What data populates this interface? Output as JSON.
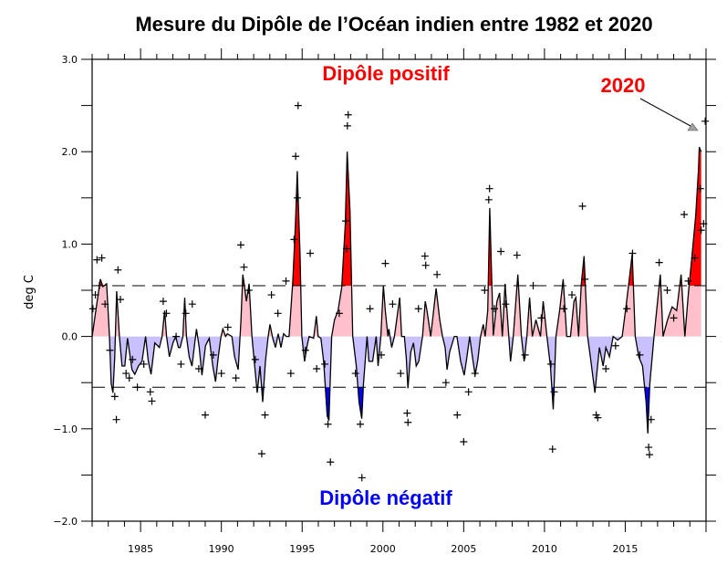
{
  "chart_data": {
    "type": "area",
    "title": "Mesure du Dipôle de l’Océan indien entre 1982 et 2020",
    "xlabel": "",
    "ylabel": "deg C",
    "xlim": [
      1982,
      2020
    ],
    "ylim": [
      -2.0,
      3.0
    ],
    "xticks": [
      1985,
      1990,
      1995,
      2000,
      2005,
      2010,
      2015
    ],
    "xtick_labels": [
      "1985",
      "1990",
      "1995",
      "2000",
      "2005",
      "2010",
      "2015"
    ],
    "yticks": [
      3.0,
      2.0,
      1.0,
      0.0,
      -1.0,
      -2.0
    ],
    "ytick_labels": [
      "3.0",
      "2.0",
      "1.0",
      "0.0",
      "−1.0",
      "−2.0"
    ],
    "grid": false,
    "thresholds": [
      0.55,
      -0.55
    ],
    "colors": {
      "positive_strong": "#ff0000",
      "positive_weak": "#ffc0cb",
      "negative_weak": "#c8c0ff",
      "negative_strong": "#0000ff",
      "line": "#000000",
      "arrow_head": "#a0a0a0"
    },
    "annotations": {
      "positive": {
        "text": "Dipôle positif",
        "color": "#ff0000"
      },
      "negative": {
        "text": "Dipôle négatif",
        "color": "#0000ff"
      },
      "highlight": {
        "text": "2020",
        "color": "#ff0000",
        "points_to": [
          2019.6,
          2.3
        ]
      }
    },
    "series": [
      {
        "kind": "smoothed-line",
        "x": [
          1982.0,
          1982.51,
          1982.67,
          1982.9,
          1983.07,
          1983.18,
          1983.29,
          1983.4,
          1983.52,
          1983.69,
          1983.85,
          1984.02,
          1984.19,
          1984.47,
          1984.64,
          1984.87,
          1985.09,
          1985.31,
          1985.48,
          1985.65,
          1985.88,
          1986.16,
          1986.33,
          1986.49,
          1986.61,
          1986.78,
          1987.0,
          1987.17,
          1987.34,
          1987.45,
          1987.62,
          1987.73,
          1987.84,
          1988.01,
          1988.18,
          1988.35,
          1988.46,
          1988.63,
          1988.8,
          1989.02,
          1989.25,
          1989.47,
          1989.64,
          1989.81,
          1989.98,
          1990.09,
          1990.26,
          1990.37,
          1990.65,
          1990.82,
          1991.04,
          1991.21,
          1991.33,
          1991.44,
          1991.55,
          1991.72,
          1991.89,
          1992.06,
          1992.22,
          1992.39,
          1992.56,
          1992.73,
          1992.9,
          1993.01,
          1993.18,
          1993.35,
          1993.52,
          1993.69,
          1993.85,
          1994.02,
          1994.19,
          1994.42,
          1994.58,
          1994.7,
          1994.87,
          1994.98,
          1995.15,
          1995.31,
          1995.43,
          1995.71,
          1995.88,
          1995.99,
          1996.16,
          1996.33,
          1996.55,
          1996.66,
          1996.83,
          1997.0,
          1997.22,
          1997.45,
          1997.67,
          1997.79,
          1997.96,
          1998.13,
          1998.35,
          1998.52,
          1998.69,
          1998.8,
          1999.02,
          1999.13,
          1999.36,
          1999.58,
          1999.7,
          1999.87,
          2000.03,
          2000.15,
          2000.31,
          2000.37,
          2000.54,
          2000.71,
          2001.04,
          2001.16,
          2001.33,
          2001.44,
          2001.55,
          2001.72,
          2001.89,
          2002.06,
          2002.22,
          2002.45,
          2002.62,
          2002.73,
          2002.96,
          2003.29,
          2003.52,
          2003.69,
          2003.85,
          2003.97,
          2004.13,
          2004.42,
          2004.58,
          2004.81,
          2005.03,
          2005.2,
          2005.37,
          2005.54,
          2005.71,
          2005.88,
          2006.04,
          2006.21,
          2006.33,
          2006.49,
          2006.61,
          2006.83,
          2007.06,
          2007.22,
          2007.39,
          2007.56,
          2007.79,
          2007.9,
          2008.07,
          2008.35,
          2008.57,
          2008.74,
          2008.91,
          2009.08,
          2009.25,
          2009.47,
          2009.75,
          2009.92,
          2010.15,
          2010.37,
          2010.54,
          2010.71,
          2010.94,
          2011.16,
          2011.38,
          2011.61,
          2011.83,
          2011.94,
          2012.11,
          2012.28,
          2012.45,
          2012.67,
          2012.84,
          2013.12,
          2013.4,
          2013.63,
          2013.8,
          2014.02,
          2014.25,
          2014.53,
          2014.81,
          2015.09,
          2015.43,
          2015.62,
          2015.84,
          2016.07,
          2016.29,
          2016.4,
          2016.52,
          2016.78,
          2017.0,
          2017.17,
          2017.34,
          2017.62,
          2017.9,
          2018.18,
          2018.46,
          2018.69,
          2018.91,
          2019.13,
          2019.36,
          2019.53,
          2019.58,
          2019.7
        ],
        "y": [
          0,
          0.62,
          0.54,
          0.57,
          0,
          -0.51,
          -0.61,
          -0.22,
          0.49,
          0,
          -0.32,
          -0.32,
          -0.02,
          -0.36,
          -0.41,
          -0.32,
          -0.27,
          0,
          -0.27,
          -0.41,
          -0.07,
          -0.12,
          0,
          0.28,
          0,
          -0.22,
          -0.07,
          0,
          -0.12,
          -0.12,
          0,
          0.42,
          0,
          -0.22,
          -0.32,
          -0.07,
          0.08,
          -0.12,
          -0.42,
          -0.1,
          -0.02,
          -0.32,
          -0.49,
          -0.22,
          0,
          0.08,
          0,
          0.03,
          0,
          -0.22,
          -0.36,
          0.16,
          0.67,
          0.53,
          0.38,
          0.57,
          0,
          -0.32,
          -0.61,
          -0.32,
          -0.71,
          -0.27,
          0,
          0.13,
          -0.02,
          -0.12,
          0.03,
          -0.12,
          0.03,
          0,
          0,
          0.6,
          1.2,
          1.79,
          0.9,
          0,
          -0.27,
          -0.1,
          0,
          -0.02,
          0.22,
          0,
          -0.02,
          -0.27,
          -0.86,
          -0.91,
          0,
          0.18,
          0.28,
          0.53,
          1.21,
          2.0,
          1.36,
          0,
          -0.32,
          -0.71,
          -0.89,
          -0.51,
          0,
          -0.27,
          -0.27,
          0,
          -0.32,
          0,
          0.55,
          0.28,
          0,
          0.08,
          -0.12,
          0,
          0.42,
          0,
          0,
          -0.22,
          -0.56,
          -0.17,
          -0.07,
          -0.32,
          -0.27,
          0,
          0.38,
          0.28,
          0,
          0.52,
          0.18,
          0,
          -0.12,
          -0.36,
          -0.17,
          0,
          0,
          -0.27,
          -0.42,
          -0.22,
          0,
          -0.22,
          -0.42,
          -0.25,
          0,
          0.13,
          0,
          0.28,
          1.39,
          0.01,
          0.38,
          0.47,
          0,
          0.57,
          0,
          -0.27,
          0,
          0.67,
          0,
          -0.27,
          0,
          0.42,
          0,
          0.18,
          0,
          0.38,
          0,
          -0.32,
          -0.79,
          0,
          0.28,
          0.62,
          0,
          0,
          0.38,
          0.42,
          0,
          0.57,
          0.87,
          0,
          -0.22,
          -0.61,
          -0.12,
          -0.32,
          -0.12,
          -0.22,
          0,
          -0.04,
          0,
          0.38,
          0.89,
          0,
          -0.22,
          -0.32,
          -0.71,
          -1.05,
          -0.51,
          0,
          0.38,
          0.67,
          0,
          0.18,
          0.32,
          0.28,
          0.67,
          0,
          0.47,
          0.87,
          1.31,
          1.8,
          2.05,
          2.0
        ]
      },
      {
        "kind": "monthly-crosses",
        "x": [
          1982.05,
          1982.2,
          1982.3,
          1982.6,
          1982.45,
          1982.8,
          1983.1,
          1983.4,
          1983.5,
          1983.6,
          1983.75,
          1984.1,
          1984.3,
          1984.5,
          1984.8,
          1985.2,
          1985.6,
          1985.7,
          1986.4,
          1986.6,
          1987.2,
          1987.5,
          1987.8,
          1988.2,
          1988.6,
          1989.0,
          1989.5,
          1990.0,
          1990.4,
          1990.9,
          1991.2,
          1991.4,
          1991.7,
          1992.1,
          1992.5,
          1992.7,
          1993.1,
          1993.5,
          1994.0,
          1994.3,
          1994.5,
          1994.6,
          1994.7,
          1994.75,
          1995.2,
          1995.5,
          1995.9,
          1996.4,
          1996.6,
          1996.75,
          1997.3,
          1997.7,
          1997.75,
          1997.8,
          1997.85,
          1998.3,
          1998.6,
          1998.7,
          1999.2,
          1999.9,
          2000.15,
          2000.6,
          2001.1,
          2001.5,
          2001.55,
          2002.2,
          2002.6,
          2002.65,
          2003.35,
          2003.9,
          2004.6,
          2005.0,
          2005.3,
          2005.7,
          2006.3,
          2006.55,
          2006.6,
          2006.9,
          2007.3,
          2007.6,
          2008.3,
          2008.8,
          2009.3,
          2009.8,
          2010.4,
          2010.5,
          2010.6,
          2011.2,
          2011.7,
          2012.35,
          2012.5,
          2013.2,
          2013.3,
          2013.8,
          2014.4,
          2015.1,
          2015.45,
          2015.9,
          2016.45,
          2016.5,
          2016.6,
          2017.1,
          2017.6,
          2018.0,
          2018.65,
          2018.9,
          2019.3,
          2019.65,
          2019.7,
          2019.85,
          2019.95
        ],
        "y": [
          0.3,
          0.45,
          0.83,
          0.85,
          0.55,
          0.35,
          -0.15,
          -0.65,
          -0.9,
          0.72,
          0.4,
          -0.4,
          -0.45,
          -0.25,
          -0.55,
          -0.3,
          -0.6,
          -0.7,
          0.38,
          0.25,
          0.0,
          -0.3,
          0.25,
          0.35,
          -0.35,
          -0.85,
          -0.2,
          -0.4,
          0.1,
          -0.45,
          0.99,
          0.75,
          0.5,
          -0.25,
          -1.27,
          -0.85,
          0.45,
          0.25,
          0.6,
          -0.4,
          1.05,
          1.95,
          1.5,
          2.5,
          -0.15,
          0.9,
          -0.35,
          -0.3,
          -0.95,
          -1.36,
          0.25,
          1.25,
          0.95,
          2.28,
          2.4,
          -0.4,
          -0.95,
          -1.53,
          0.3,
          -0.2,
          0.79,
          0.35,
          -0.4,
          -0.83,
          -0.93,
          0.3,
          0.87,
          0.77,
          0.67,
          -0.5,
          -0.85,
          -1.14,
          -0.6,
          -0.4,
          0.5,
          1.48,
          1.6,
          0.3,
          0.92,
          0.35,
          0.88,
          -0.2,
          0.55,
          0.2,
          -0.3,
          -1.22,
          -0.6,
          0.3,
          0.45,
          1.41,
          0.62,
          -0.85,
          -0.88,
          -0.35,
          -0.1,
          0.3,
          0.9,
          -0.2,
          -1.2,
          -1.28,
          -0.9,
          0.8,
          0.5,
          0.2,
          1.32,
          0.6,
          0.85,
          1.6,
          1.15,
          1.22,
          2.33
        ]
      }
    ]
  }
}
